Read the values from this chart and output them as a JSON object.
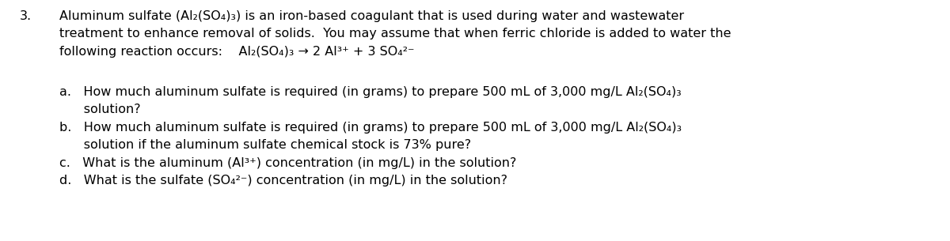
{
  "background_color": "#ffffff",
  "question_number": "3.",
  "main_text_line1": "Aluminum sulfate (Al₂(SO₄)₃) is an iron-based coagulant that is used during water and wastewater",
  "main_text_line2": "treatment to enhance removal of solids.  You may assume that when ferric chloride is added to water the",
  "main_text_line3": "following reaction occurs:    Al₂(SO₄)₃ → 2 Al³⁺ + 3 SO₄²⁻",
  "sub_a_line1": "a.   How much aluminum sulfate is required (in grams) to prepare 500 mL of 3,000 mg/L Al₂(SO₄)₃",
  "sub_a_line2": "      solution?",
  "sub_b_line1": "b.   How much aluminum sulfate is required (in grams) to prepare 500 mL of 3,000 mg/L Al₂(SO₄)₃",
  "sub_b_line2": "      solution if the aluminum sulfate chemical stock is 73% pure?",
  "sub_c": "c.   What is the aluminum (Al³⁺) concentration (in mg/L) in the solution?",
  "sub_d": "d.   What is the sulfate (SO₄²⁻) concentration (in mg/L) in the solution?",
  "font_size": 11.5,
  "font_family": "DejaVu Sans",
  "text_color": "#000000",
  "figwidth": 12.0,
  "figheight": 3.05,
  "dpi": 100
}
